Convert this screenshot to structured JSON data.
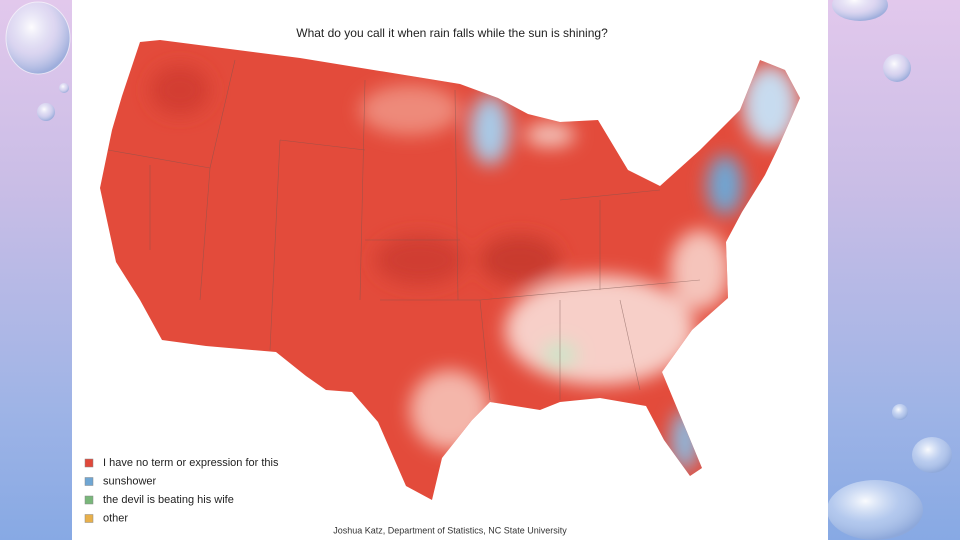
{
  "map": {
    "title": "What do you call it when rain falls while the sun is shining?",
    "legend": [
      {
        "label": "I have no term or expression for this",
        "color": "#e0483a"
      },
      {
        "label": "sunshower",
        "color": "#6fa6d3"
      },
      {
        "label": "the devil is beating his wife",
        "color": "#79b77a"
      },
      {
        "label": "other",
        "color": "#e8b04b"
      }
    ],
    "credit": "Joshua Katz, Department of Statistics, NC State University"
  }
}
